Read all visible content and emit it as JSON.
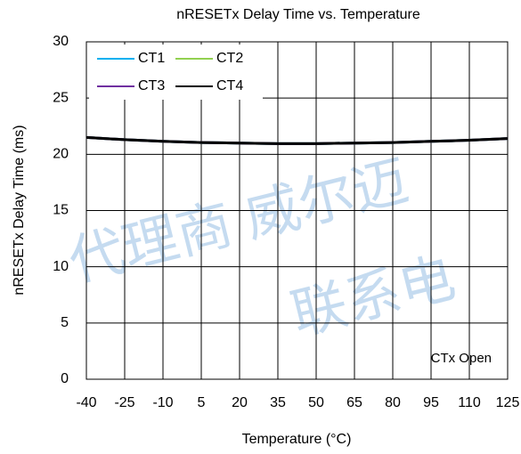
{
  "chart_data": {
    "type": "line",
    "title": "nRESETx Delay Time vs. Temperature",
    "xlabel": "Temperature (°C)",
    "ylabel": "nRESETx Delay Time (ms)",
    "annotation": "CTx Open",
    "watermark": [
      "代理商 威尔迈",
      "联系电"
    ],
    "x": [
      -40,
      -25,
      -10,
      5,
      20,
      35,
      50,
      65,
      80,
      95,
      110,
      125
    ],
    "series": [
      {
        "name": "CT1",
        "color": "#00b0f0",
        "values": [
          21.5,
          21.3,
          21.15,
          21.05,
          21.0,
          20.95,
          20.95,
          21.0,
          21.05,
          21.15,
          21.25,
          21.4
        ]
      },
      {
        "name": "CT2",
        "color": "#92d050",
        "values": [
          21.5,
          21.3,
          21.15,
          21.05,
          21.0,
          20.95,
          20.95,
          21.0,
          21.05,
          21.15,
          21.25,
          21.4
        ]
      },
      {
        "name": "CT3",
        "color": "#7030a0",
        "values": [
          21.5,
          21.3,
          21.15,
          21.05,
          21.0,
          20.95,
          20.95,
          21.0,
          21.05,
          21.15,
          21.25,
          21.4
        ]
      },
      {
        "name": "CT4",
        "color": "#000000",
        "values": [
          21.5,
          21.3,
          21.15,
          21.05,
          21.0,
          20.95,
          20.95,
          21.0,
          21.05,
          21.15,
          21.25,
          21.4
        ]
      }
    ],
    "xlim": [
      -40,
      125
    ],
    "xticks": [
      -40,
      -25,
      -10,
      5,
      20,
      35,
      50,
      65,
      80,
      95,
      110,
      125
    ],
    "ylim": [
      0,
      30
    ],
    "yticks": [
      0,
      5,
      10,
      15,
      20,
      25,
      30
    ],
    "grid": true,
    "legend": "upper left"
  }
}
